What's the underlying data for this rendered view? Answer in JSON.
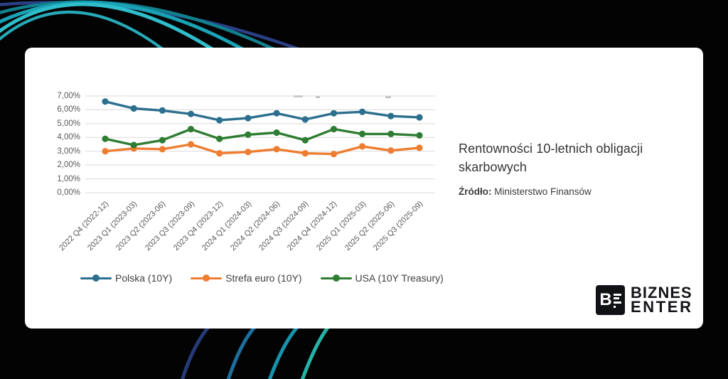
{
  "chart_data": {
    "type": "line",
    "categories": [
      "2022 Q4 (2022-12)",
      "2023 Q1 (2023-03)",
      "2023 Q2 (2023-06)",
      "2023 Q3 (2023-09)",
      "2023 Q4 (2023-12)",
      "2024 Q1 (2024-03)",
      "2024 Q2 (2024-06)",
      "2024 Q3 (2024-09)",
      "2024 Q4 (2024-12)",
      "2025 Q1 (2025-03)",
      "2025 Q2 (2025-06)",
      "2025 Q3 (2025-09)"
    ],
    "series": [
      {
        "name": "Polska (10Y)",
        "color": "#2c6f8e",
        "values": [
          6.6,
          6.1,
          5.95,
          5.7,
          5.25,
          5.4,
          5.75,
          5.3,
          5.75,
          5.85,
          5.55,
          5.45
        ]
      },
      {
        "name": "Strefa euro (10Y)",
        "color": "#ed7d31",
        "values": [
          3.0,
          3.2,
          3.15,
          3.5,
          2.85,
          2.95,
          3.15,
          2.85,
          2.8,
          3.35,
          3.05,
          3.25
        ]
      },
      {
        "name": "USA (10Y Treasury)",
        "color": "#2e7d32",
        "values": [
          3.9,
          3.45,
          3.8,
          4.6,
          3.9,
          4.2,
          4.35,
          3.8,
          4.6,
          4.25,
          4.25,
          4.15
        ]
      }
    ],
    "ylim": [
      0,
      7
    ],
    "yticks": [
      "0,00%",
      "1,00%",
      "2,00%",
      "3,00%",
      "4,00%",
      "5,00%",
      "6,00%",
      "7,00%"
    ],
    "grid": true,
    "legend_position": "bottom"
  },
  "panel": {
    "title": "Rentowności 10-letnich obligacji skarbowych",
    "source_label": "Źródło:",
    "source_value": "Ministerstwo Finansów"
  },
  "logo": {
    "b": "B",
    "line1": "BIZNES",
    "line2": "ENTER"
  },
  "colors": {
    "background": "#030303",
    "card": "#ffffff",
    "grid": "#d9d9d9",
    "axis_text": "#595959",
    "accent_teal": "#2fbecb",
    "accent_dark_blue": "#2b3f85"
  }
}
